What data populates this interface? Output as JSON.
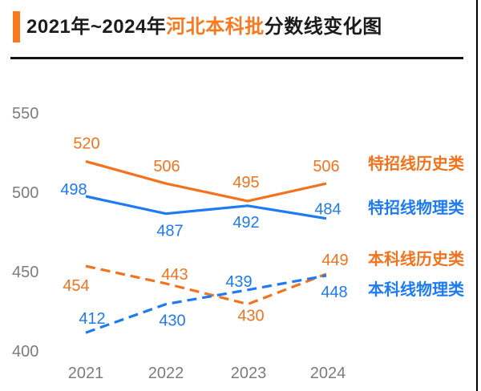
{
  "header": {
    "title_prefix": "2021年~2024年",
    "title_highlight": "河北本科批",
    "title_suffix": "分数线变化图",
    "accent_color": "#f8791f"
  },
  "chart_data": {
    "type": "line",
    "title": "2021年~2024年河北本科批分数线变化图",
    "categories": [
      "2021",
      "2022",
      "2023",
      "2024"
    ],
    "y_ticks": [
      550,
      500,
      450,
      400
    ],
    "ylim": [
      400,
      550
    ],
    "grid": false,
    "legend_position": "right",
    "colors": {
      "history": "#f2731d",
      "physics": "#1e7bf2"
    },
    "series": [
      {
        "name": "特招线历史类",
        "color": "#f2731d",
        "line_style": "solid",
        "values": [
          520,
          506,
          495,
          506
        ],
        "label_offsets": [
          [
            1,
            -23
          ],
          [
            1,
            -22
          ],
          [
            -2,
            -24
          ],
          [
            0,
            -22
          ]
        ]
      },
      {
        "name": "特招线物理类",
        "color": "#1e7bf2",
        "line_style": "solid",
        "values": [
          498,
          487,
          492,
          484
        ],
        "label_offsets": [
          [
            -15,
            -9
          ],
          [
            5,
            21
          ],
          [
            -2,
            20
          ],
          [
            2,
            -12
          ]
        ]
      },
      {
        "name": "本科线历史类",
        "color": "#f2731d",
        "line_style": "dashed",
        "values": [
          454,
          443,
          430,
          449
        ],
        "label_offsets": [
          [
            -12,
            24
          ],
          [
            11,
            -12
          ],
          [
            4,
            14
          ],
          [
            11,
            -18
          ]
        ]
      },
      {
        "name": "本科线物理类",
        "color": "#1e7bf2",
        "line_style": "dashed",
        "values": [
          412,
          430,
          439,
          448
        ],
        "label_offsets": [
          [
            8,
            -18
          ],
          [
            8,
            20
          ],
          [
            -11,
            -11
          ],
          [
            10,
            20
          ]
        ]
      }
    ]
  }
}
